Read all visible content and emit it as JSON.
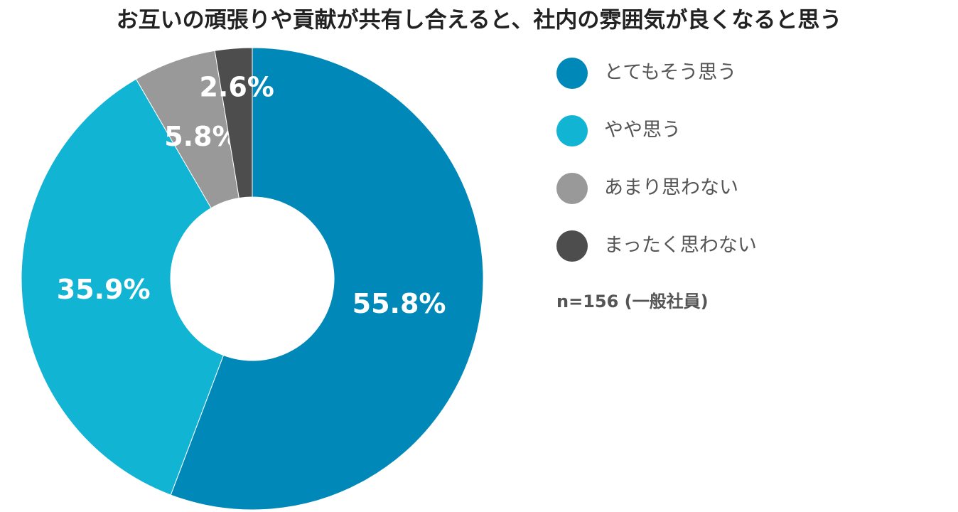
{
  "chart_data": {
    "type": "pie",
    "title": "お互いの頑張りや貢献が共有し合えると、社内の雰囲気が良くなると思う",
    "categories": [
      "とてもそう思う",
      "やや思う",
      "あまり思わない",
      "まったく思わない"
    ],
    "values": [
      55.8,
      35.9,
      5.8,
      2.6
    ],
    "value_labels": [
      "55.8%",
      "35.9%",
      "5.8%",
      "2.6%"
    ],
    "colors": [
      "#0089b8",
      "#12b4d4",
      "#999999",
      "#4d4d4d"
    ],
    "note": "n=156 (一般社員)"
  }
}
